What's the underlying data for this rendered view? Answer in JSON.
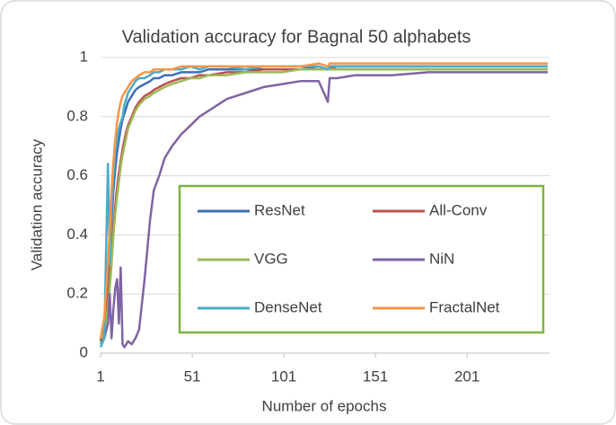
{
  "chart_data": {
    "type": "line",
    "title": "Validation accuracy for Bagnal 50 alphabets",
    "x_label": "Number of epochs",
    "y_label": "Validation accuracy",
    "x": [
      1,
      3,
      5,
      6,
      7,
      8,
      9,
      10,
      11,
      12,
      13,
      14,
      15,
      16,
      18,
      20,
      22,
      25,
      28,
      30,
      33,
      36,
      40,
      45,
      50,
      55,
      60,
      70,
      80,
      90,
      100,
      110,
      120,
      125,
      126,
      130,
      140,
      160,
      180,
      200,
      220,
      245
    ],
    "xlim": [
      1,
      246
    ],
    "xticks": [
      1,
      51,
      101,
      151,
      201
    ],
    "ylim": [
      0,
      1
    ],
    "yticks": [
      0,
      0.2,
      0.4,
      0.6,
      0.8,
      1
    ],
    "grid": true,
    "legend": "center-right",
    "series": [
      {
        "name": "ResNet",
        "color": "#3f6fb8",
        "values": [
          0.04,
          0.1,
          0.25,
          0.35,
          0.45,
          0.55,
          0.62,
          0.68,
          0.72,
          0.76,
          0.79,
          0.81,
          0.83,
          0.85,
          0.87,
          0.89,
          0.9,
          0.91,
          0.92,
          0.93,
          0.93,
          0.94,
          0.94,
          0.95,
          0.95,
          0.95,
          0.96,
          0.96,
          0.96,
          0.96,
          0.96,
          0.96,
          0.97,
          0.96,
          0.97,
          0.97,
          0.97,
          0.97,
          0.97,
          0.97,
          0.97,
          0.97
        ]
      },
      {
        "name": "All-Conv",
        "color": "#c0504d",
        "values": [
          0.04,
          0.08,
          0.18,
          0.26,
          0.35,
          0.43,
          0.5,
          0.56,
          0.61,
          0.65,
          0.69,
          0.72,
          0.75,
          0.77,
          0.8,
          0.83,
          0.85,
          0.87,
          0.88,
          0.89,
          0.9,
          0.91,
          0.92,
          0.93,
          0.93,
          0.94,
          0.94,
          0.95,
          0.95,
          0.96,
          0.96,
          0.96,
          0.96,
          0.96,
          0.96,
          0.97,
          0.97,
          0.97,
          0.97,
          0.97,
          0.97,
          0.97
        ]
      },
      {
        "name": "VGG",
        "color": "#9bbb59",
        "values": [
          0.03,
          0.07,
          0.15,
          0.22,
          0.3,
          0.4,
          0.47,
          0.53,
          0.58,
          0.63,
          0.67,
          0.7,
          0.73,
          0.76,
          0.79,
          0.82,
          0.84,
          0.86,
          0.87,
          0.88,
          0.89,
          0.9,
          0.91,
          0.92,
          0.93,
          0.93,
          0.94,
          0.94,
          0.95,
          0.95,
          0.95,
          0.96,
          0.96,
          0.96,
          0.96,
          0.96,
          0.96,
          0.96,
          0.96,
          0.96,
          0.96,
          0.96
        ]
      },
      {
        "name": "NiN",
        "color": "#8064a2",
        "values": [
          0.04,
          0.05,
          0.1,
          0.2,
          0.05,
          0.15,
          0.22,
          0.25,
          0.1,
          0.29,
          0.03,
          0.02,
          0.03,
          0.04,
          0.03,
          0.05,
          0.08,
          0.25,
          0.45,
          0.55,
          0.6,
          0.66,
          0.7,
          0.74,
          0.77,
          0.8,
          0.82,
          0.86,
          0.88,
          0.9,
          0.91,
          0.92,
          0.92,
          0.85,
          0.93,
          0.93,
          0.94,
          0.94,
          0.95,
          0.95,
          0.95,
          0.95
        ]
      },
      {
        "name": "DenseNet",
        "color": "#4bacc6",
        "values": [
          0.02,
          0.05,
          0.64,
          0.3,
          0.5,
          0.6,
          0.68,
          0.72,
          0.76,
          0.78,
          0.8,
          0.84,
          0.86,
          0.88,
          0.9,
          0.92,
          0.93,
          0.93,
          0.94,
          0.95,
          0.95,
          0.96,
          0.96,
          0.96,
          0.97,
          0.96,
          0.97,
          0.97,
          0.96,
          0.97,
          0.97,
          0.97,
          0.97,
          0.96,
          0.97,
          0.97,
          0.97,
          0.97,
          0.97,
          0.97,
          0.97,
          0.97
        ]
      },
      {
        "name": "FractalNet",
        "color": "#f79646",
        "values": [
          0.05,
          0.12,
          0.3,
          0.42,
          0.55,
          0.65,
          0.72,
          0.78,
          0.82,
          0.85,
          0.87,
          0.88,
          0.89,
          0.9,
          0.92,
          0.93,
          0.94,
          0.95,
          0.95,
          0.96,
          0.96,
          0.96,
          0.96,
          0.97,
          0.97,
          0.97,
          0.97,
          0.97,
          0.97,
          0.97,
          0.97,
          0.97,
          0.98,
          0.97,
          0.98,
          0.98,
          0.98,
          0.98,
          0.98,
          0.98,
          0.98,
          0.98
        ]
      }
    ]
  }
}
